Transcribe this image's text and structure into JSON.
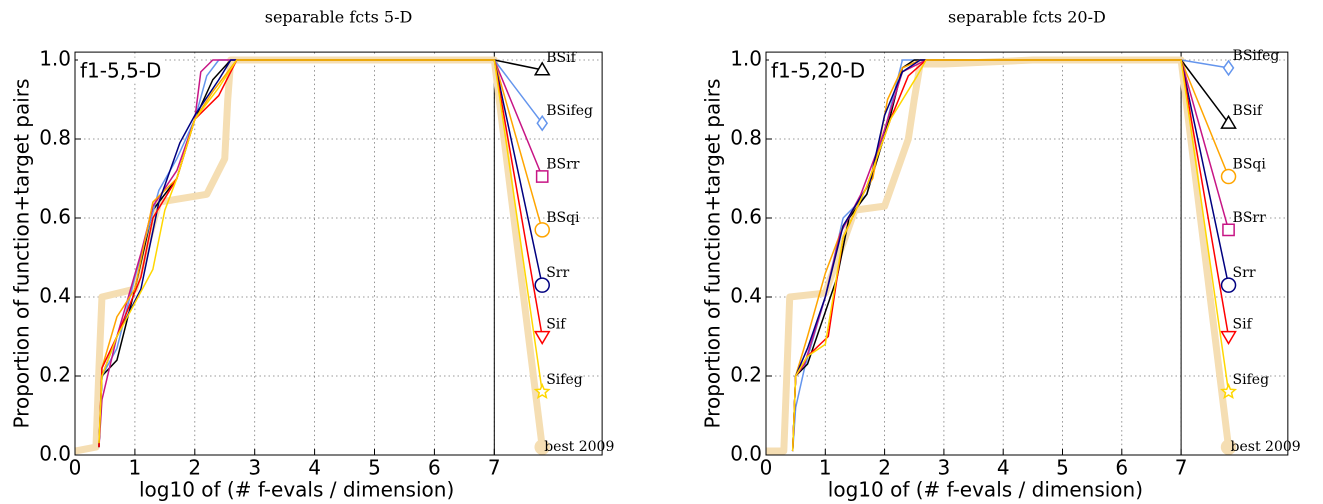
{
  "chart_data": [
    {
      "type": "line",
      "title": "separable fcts 5-D",
      "annotation": "f1-5,5-D",
      "xlabel": "log10 of (# f-evals / dimension)",
      "ylabel": "Proportion of function+target pairs",
      "xlim": [
        0,
        8.8
      ],
      "ylim": [
        0,
        1.02
      ],
      "xticks": [
        0,
        1,
        2,
        3,
        4,
        5,
        6,
        7
      ],
      "yticks": [
        {
          "value": 0,
          "label": "0.0"
        },
        0.2,
        0.4,
        0.6,
        0.8,
        {
          "value": 1,
          "label": "1.0"
        }
      ],
      "grid": true,
      "vline": 7,
      "series": [
        {
          "name": "best 2009",
          "color": "#f5deb3",
          "marker": "circle",
          "x": [
            0,
            0.35,
            0.4,
            0.45,
            1.0,
            1.4,
            2.2,
            2.5,
            2.55,
            2.6,
            3,
            7,
            7.8
          ],
          "values": [
            0.01,
            0.02,
            0.22,
            0.4,
            0.42,
            0.64,
            0.66,
            0.75,
            0.9,
            1.0,
            1.0,
            1.0,
            0.02
          ]
        },
        {
          "name": "BSif",
          "color": "#000000",
          "marker": "triangle-up",
          "x": [
            0.4,
            0.45,
            0.7,
            1.0,
            1.3,
            1.7,
            2.0,
            2.3,
            2.6,
            7,
            7.8
          ],
          "values": [
            0.02,
            0.2,
            0.24,
            0.42,
            0.62,
            0.7,
            0.85,
            0.95,
            1.0,
            1.0,
            0.975
          ]
        },
        {
          "name": "BSifeg",
          "color": "#6495ed",
          "marker": "diamond",
          "x": [
            0.4,
            0.45,
            0.7,
            1.0,
            1.4,
            1.7,
            2.0,
            2.2,
            2.4,
            7,
            7.8
          ],
          "values": [
            0.02,
            0.2,
            0.27,
            0.45,
            0.67,
            0.75,
            0.85,
            0.96,
            1.0,
            1.0,
            0.84
          ]
        },
        {
          "name": "BSrr",
          "color": "#c71585",
          "marker": "square",
          "x": [
            0.4,
            0.45,
            0.7,
            1.1,
            1.3,
            1.7,
            2.0,
            2.1,
            2.3,
            7,
            7.8
          ],
          "values": [
            0.02,
            0.14,
            0.3,
            0.51,
            0.63,
            0.72,
            0.85,
            0.97,
            1.0,
            1.0,
            0.705
          ]
        },
        {
          "name": "BSqi",
          "color": "#ffa500",
          "marker": "circle",
          "x": [
            0.4,
            0.45,
            0.7,
            1.0,
            1.3,
            1.7,
            2.0,
            2.3,
            2.7,
            7,
            7.8
          ],
          "values": [
            0.02,
            0.22,
            0.35,
            0.42,
            0.64,
            0.7,
            0.85,
            0.92,
            1.0,
            1.0,
            0.57
          ]
        },
        {
          "name": "Srr",
          "color": "#000080",
          "marker": "circle",
          "x": [
            0.4,
            0.45,
            0.7,
            1.1,
            1.4,
            1.75,
            2.0,
            2.4,
            2.6,
            7,
            7.8
          ],
          "values": [
            0.02,
            0.2,
            0.3,
            0.42,
            0.64,
            0.79,
            0.86,
            0.95,
            1.0,
            1.0,
            0.43
          ]
        },
        {
          "name": "Sif",
          "color": "#ff0000",
          "marker": "triangle-down",
          "x": [
            0.4,
            0.45,
            0.7,
            1.1,
            1.3,
            1.7,
            2.0,
            2.4,
            2.7,
            7,
            7.8
          ],
          "values": [
            0.02,
            0.22,
            0.3,
            0.45,
            0.6,
            0.7,
            0.85,
            0.91,
            1.0,
            1.0,
            0.3
          ]
        },
        {
          "name": "Sifeg",
          "color": "#ffd700",
          "marker": "star",
          "x": [
            0.4,
            0.45,
            0.7,
            1.3,
            1.5,
            1.7,
            2.0,
            2.4,
            2.7,
            7,
            7.8
          ],
          "values": [
            0.03,
            0.2,
            0.3,
            0.47,
            0.62,
            0.7,
            0.85,
            0.93,
            1.0,
            1.0,
            0.16
          ]
        }
      ]
    },
    {
      "type": "line",
      "title": "separable fcts 20-D",
      "annotation": "f1-5,20-D",
      "xlabel": "log10 of (# f-evals / dimension)",
      "ylabel": "Proportion of function+target pairs",
      "xlim": [
        0,
        8.8
      ],
      "ylim": [
        0,
        1.02
      ],
      "xticks": [
        0,
        1,
        2,
        3,
        4,
        5,
        6,
        7
      ],
      "yticks": [
        {
          "value": 0,
          "label": "0.0"
        },
        0.2,
        0.4,
        0.6,
        0.8,
        {
          "value": 1,
          "label": "1.0"
        }
      ],
      "grid": true,
      "vline": 7,
      "series": [
        {
          "name": "best 2009",
          "color": "#f5deb3",
          "marker": "circle",
          "x": [
            0,
            0.3,
            0.35,
            0.4,
            1.0,
            1.5,
            2.0,
            2.4,
            2.5,
            2.6,
            3,
            4.5,
            7,
            7.8
          ],
          "values": [
            0.01,
            0.01,
            0.2,
            0.4,
            0.41,
            0.62,
            0.63,
            0.8,
            0.9,
            0.99,
            0.99,
            1.0,
            1.0,
            0.02
          ]
        },
        {
          "name": "BSifeg",
          "color": "#6495ed",
          "marker": "diamond",
          "x": [
            0.45,
            0.5,
            0.65,
            1.0,
            1.3,
            1.7,
            2.0,
            2.3,
            2.5,
            7,
            7.8
          ],
          "values": [
            0.01,
            0.12,
            0.22,
            0.4,
            0.6,
            0.66,
            0.82,
            1.0,
            1.0,
            1.0,
            0.98
          ]
        },
        {
          "name": "BSif",
          "color": "#000000",
          "marker": "triangle-up",
          "x": [
            0.45,
            0.5,
            0.7,
            1.2,
            1.4,
            1.7,
            2.1,
            2.3,
            2.5,
            7,
            7.8
          ],
          "values": [
            0.01,
            0.2,
            0.23,
            0.45,
            0.6,
            0.66,
            0.86,
            0.98,
            1.0,
            1.0,
            0.84
          ]
        },
        {
          "name": "BSqi",
          "color": "#ffa500",
          "marker": "circle",
          "x": [
            0.45,
            0.5,
            0.7,
            1.0,
            1.3,
            1.8,
            2.05,
            2.3,
            2.6,
            7,
            7.8
          ],
          "values": [
            0.01,
            0.2,
            0.3,
            0.46,
            0.58,
            0.7,
            0.9,
            0.98,
            1.0,
            1.0,
            0.705
          ]
        },
        {
          "name": "BSrr",
          "color": "#c71585",
          "marker": "square",
          "x": [
            0.45,
            0.5,
            0.65,
            1.0,
            1.25,
            1.6,
            1.95,
            2.3,
            2.7,
            7,
            7.8
          ],
          "values": [
            0.01,
            0.2,
            0.23,
            0.4,
            0.56,
            0.66,
            0.8,
            0.97,
            1.0,
            1.0,
            0.57
          ]
        },
        {
          "name": "Srr",
          "color": "#000080",
          "marker": "circle",
          "x": [
            0.45,
            0.5,
            0.7,
            1.0,
            1.3,
            1.75,
            2.0,
            2.3,
            2.6,
            7,
            7.8
          ],
          "values": [
            0.01,
            0.2,
            0.27,
            0.4,
            0.58,
            0.69,
            0.86,
            0.97,
            1.0,
            1.0,
            0.43
          ]
        },
        {
          "name": "Sif",
          "color": "#ff0000",
          "marker": "triangle-down",
          "x": [
            0.45,
            0.5,
            0.7,
            1.05,
            1.3,
            1.7,
            2.1,
            2.4,
            2.7,
            7,
            7.8
          ],
          "values": [
            0.01,
            0.2,
            0.25,
            0.3,
            0.55,
            0.68,
            0.85,
            0.96,
            1.0,
            1.0,
            0.3
          ]
        },
        {
          "name": "Sifeg",
          "color": "#ffd700",
          "marker": "star",
          "x": [
            0.45,
            0.5,
            0.7,
            1.0,
            1.3,
            1.7,
            2.1,
            2.55,
            2.7,
            7,
            7.8
          ],
          "values": [
            0.01,
            0.2,
            0.25,
            0.28,
            0.55,
            0.68,
            0.85,
            0.96,
            1.0,
            1.0,
            0.16
          ]
        }
      ]
    }
  ]
}
